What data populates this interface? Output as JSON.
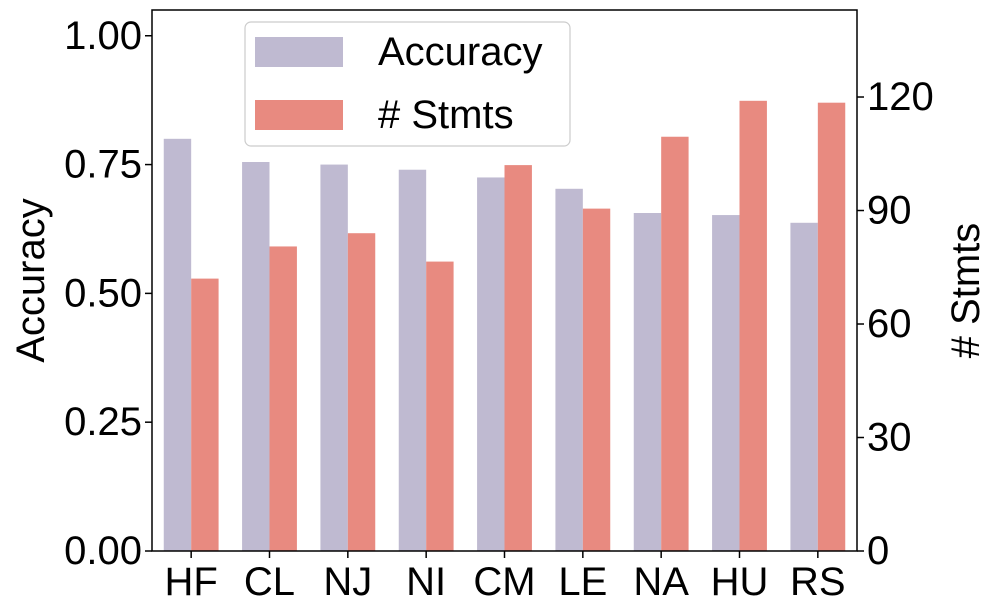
{
  "chart_data": {
    "type": "bar",
    "categories": [
      "HF",
      "CL",
      "NJ",
      "NI",
      "CM",
      "LE",
      "NA",
      "HU",
      "RS"
    ],
    "series": [
      {
        "name": "Accuracy",
        "axis": "left",
        "color": "#bfbad1",
        "values": [
          0.8,
          0.755,
          0.75,
          0.74,
          0.725,
          0.703,
          0.656,
          0.652,
          0.637
        ]
      },
      {
        "name": "# Stmts",
        "axis": "right",
        "color": "#e88a80",
        "values": [
          72,
          80.5,
          84,
          76.5,
          102,
          90.5,
          109.5,
          119,
          118.5
        ]
      }
    ],
    "ylabel": "Accuracy",
    "ylabel_right": "# Stmts",
    "ylim": [
      0,
      1.05
    ],
    "ylim_right": [
      0,
      143
    ],
    "yticks": [
      "0.00",
      "0.25",
      "0.50",
      "0.75",
      "1.00"
    ],
    "yticks_values": [
      0,
      0.25,
      0.5,
      0.75,
      1.0
    ],
    "yticks_right": [
      "0",
      "30",
      "60",
      "90",
      "120"
    ],
    "yticks_right_values": [
      0,
      30,
      60,
      90,
      120
    ],
    "grid": false,
    "legend_position": "top-left"
  }
}
